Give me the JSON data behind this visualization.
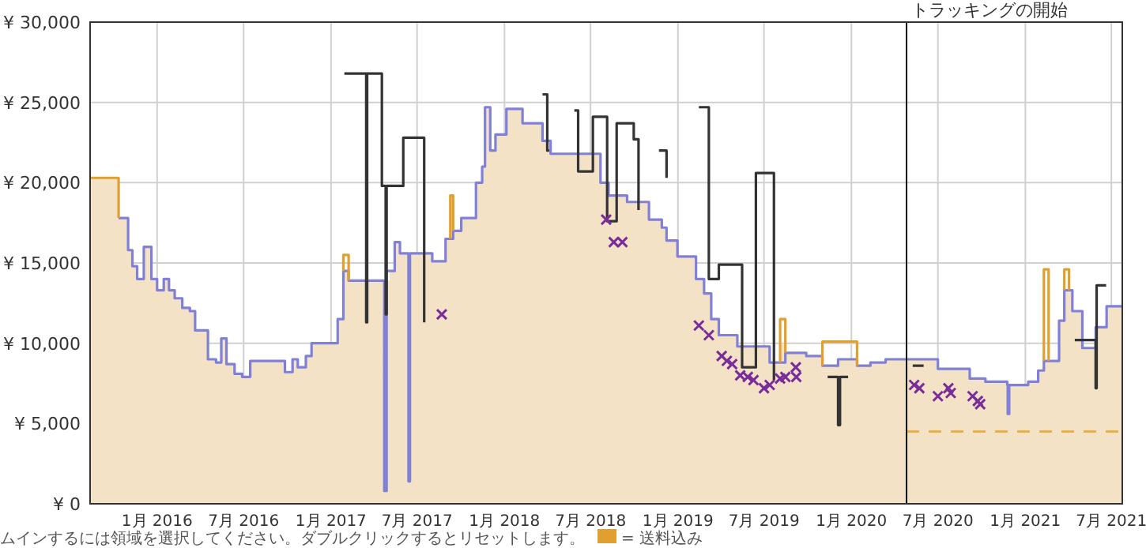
{
  "chart_data": {
    "type": "step",
    "xlim": [
      "2015-08-13",
      "2021-07-24"
    ],
    "ylim": [
      0,
      30000
    ],
    "xticks": [
      {
        "value": "2016-01",
        "label": "1月 2016"
      },
      {
        "value": "2016-07",
        "label": "7月 2016"
      },
      {
        "value": "2017-01",
        "label": "1月 2017"
      },
      {
        "value": "2017-07",
        "label": "7月 2017"
      },
      {
        "value": "2018-01",
        "label": "1月 2018"
      },
      {
        "value": "2018-07",
        "label": "7月 2018"
      },
      {
        "value": "2019-01",
        "label": "1月 2019"
      },
      {
        "value": "2019-07",
        "label": "7月 2019"
      },
      {
        "value": "2020-01",
        "label": "1月 2020"
      },
      {
        "value": "2020-07",
        "label": "7月 2020"
      },
      {
        "value": "2021-01",
        "label": "1月 2021"
      },
      {
        "value": "2021-07",
        "label": "7月 2021"
      }
    ],
    "yticks": [
      {
        "value": 0,
        "label": "¥ 0"
      },
      {
        "value": 5000,
        "label": "¥ 5,000"
      },
      {
        "value": 10000,
        "label": "¥ 10,000"
      },
      {
        "value": 15000,
        "label": "¥ 15,000"
      },
      {
        "value": 20000,
        "label": "¥ 20,000"
      },
      {
        "value": 25000,
        "label": "¥ 25,000"
      },
      {
        "value": 30000,
        "label": "¥ 30,000"
      }
    ],
    "grid": true,
    "legend": "bottom",
    "ref_lines": [
      {
        "axis": "x",
        "value": "2020-04-26",
        "label": "トラッキングの開始",
        "color": "#000000"
      }
    ],
    "annotations": [
      "ムインするには領域を選択してください。ダブルクリックするとリセットします。"
    ],
    "series": [
      {
        "type": "area",
        "color": "#f3e2c6",
        "x": [
          "2015-08-13",
          "2015-10-12",
          "2015-11-01",
          "2015-11-10",
          "2015-11-20",
          "2015-12-04",
          "2015-12-20",
          "2016-01-01",
          "2016-01-15",
          "2016-01-26",
          "2016-02-07",
          "2016-02-23",
          "2016-03-10",
          "2016-03-21",
          "2016-04-17",
          "2016-05-04",
          "2016-05-15",
          "2016-05-26",
          "2016-06-12",
          "2016-06-28",
          "2016-07-15",
          "2016-09-26",
          "2016-10-12",
          "2016-10-23",
          "2016-11-09",
          "2016-11-21",
          "2017-01-15",
          "2017-01-27",
          "2017-02-07",
          "2017-05-04",
          "2017-05-15",
          "2017-05-26",
          "2017-08-02",
          "2017-08-30",
          "2017-09-09",
          "2017-09-15",
          "2017-10-02",
          "2017-11-02",
          "2017-11-15",
          "2017-11-21",
          "2017-12-02",
          "2017-12-13",
          "2018-01-05",
          "2018-02-08",
          "2018-03-22",
          "2018-04-08",
          "2018-07-22",
          "2018-08-08",
          "2018-09-16",
          "2018-11-01",
          "2018-11-28",
          "2018-12-08",
          "2018-12-31",
          "2019-02-08",
          "2019-02-25",
          "2019-03-12",
          "2019-03-28",
          "2019-05-06",
          "2019-07-13",
          "2019-08-04",
          "2019-08-15",
          "2019-09-28",
          "2019-11-01",
          "2019-12-04",
          "2020-01-13",
          "2020-02-10",
          "2020-03-13",
          "2020-07-01",
          "2020-09-06",
          "2020-10-09",
          "2020-11-24",
          "2021-01-07",
          "2021-01-28",
          "2021-02-09",
          "2021-03-13",
          "2021-03-24",
          "2021-04-10",
          "2021-05-01",
          "2021-05-29",
          "2021-06-21",
          "2021-07-24"
        ],
        "values": [
          20300,
          17800,
          15800,
          14800,
          14000,
          16000,
          14000,
          13300,
          14000,
          13300,
          12800,
          12200,
          12000,
          10800,
          9000,
          8800,
          10300,
          8700,
          8100,
          7900,
          8900,
          8200,
          9000,
          8500,
          9200,
          10000,
          11500,
          14500,
          13900,
          14500,
          16300,
          15600,
          15100,
          16500,
          19200,
          17000,
          17800,
          20000,
          21000,
          24700,
          22000,
          23000,
          24600,
          23700,
          22600,
          21800,
          20000,
          19200,
          18800,
          17700,
          17200,
          16400,
          15400,
          14000,
          13100,
          11500,
          10500,
          9800,
          8800,
          10000,
          9400,
          9200,
          8600,
          9000,
          8600,
          8800,
          9000,
          8400,
          7800,
          7600,
          7400,
          7600,
          8300,
          8900,
          11400,
          13300,
          12000,
          9700,
          11000,
          12300,
          12300
        ]
      },
      {
        "color": "#8080d8",
        "x": [
          "2015-10-12",
          "2015-11-01",
          "2015-11-10",
          "2015-11-20",
          "2015-12-04",
          "2015-12-20",
          "2016-01-01",
          "2016-01-15",
          "2016-01-26",
          "2016-02-07",
          "2016-02-23",
          "2016-03-10",
          "2016-03-21",
          "2016-04-17",
          "2016-05-04",
          "2016-05-15",
          "2016-05-26",
          "2016-06-12",
          "2016-06-28",
          "2016-07-15",
          "2016-09-26",
          "2016-10-12",
          "2016-10-23",
          "2016-11-09",
          "2016-11-21",
          "2017-01-15",
          "2017-01-27",
          "2017-02-07",
          "2017-04-23",
          "2017-04-28",
          "2017-05-04",
          "2017-05-15",
          "2017-05-26",
          "2017-06-13",
          "2017-06-16",
          "2017-08-02",
          "2017-08-30",
          "2017-09-15",
          "2017-10-02",
          "2017-11-02",
          "2017-11-15",
          "2017-11-21",
          "2017-12-02",
          "2017-12-13",
          "2018-01-05",
          "2018-02-08",
          "2018-03-22",
          "2018-04-08",
          "2018-07-22",
          "2018-08-08",
          "2018-09-16",
          "2018-11-01",
          "2018-11-28",
          "2018-12-08",
          "2018-12-31",
          "2019-02-08",
          "2019-02-25",
          "2019-03-12",
          "2019-03-28",
          "2019-05-06",
          "2019-07-13",
          "2019-08-15",
          "2019-09-28",
          "2019-11-01",
          "2019-12-04",
          "2020-01-13",
          "2020-02-10",
          "2020-03-13",
          "2020-07-01",
          "2020-09-06",
          "2020-10-09",
          "2020-11-24",
          "2020-11-25",
          "2020-11-28",
          "2021-01-07",
          "2021-01-28",
          "2021-02-09",
          "2021-03-13",
          "2021-03-24",
          "2021-04-10",
          "2021-05-01",
          "2021-05-29",
          "2021-06-21",
          "2021-07-24"
        ],
        "values": [
          17800,
          15800,
          14800,
          14000,
          16000,
          14000,
          13300,
          14000,
          13300,
          12800,
          12200,
          12000,
          10800,
          9000,
          8800,
          10300,
          8700,
          8100,
          7900,
          8900,
          8200,
          9000,
          8500,
          9200,
          10000,
          11500,
          14500,
          13900,
          800,
          14500,
          14500,
          16300,
          15600,
          1400,
          15600,
          15100,
          16500,
          17000,
          17800,
          20000,
          21000,
          24700,
          22000,
          23000,
          24600,
          23700,
          22600,
          21800,
          20000,
          19200,
          18800,
          17700,
          17200,
          16400,
          15400,
          14000,
          13100,
          11500,
          10500,
          9800,
          8800,
          9400,
          9200,
          8600,
          9000,
          8600,
          8800,
          9000,
          8400,
          7800,
          7600,
          7400,
          5600,
          7400,
          7600,
          8300,
          8900,
          11400,
          13300,
          12000,
          9700,
          11000,
          12300,
          12300
        ]
      },
      {
        "name": "= 送料込み",
        "color": "#e0a030",
        "x": [
          "2015-08-13",
          "2015-10-12",
          "2015-10-12"
        ],
        "values": [
          20300,
          20300,
          17800
        ]
      },
      {
        "color": "#e0a030",
        "x": [
          "2017-01-27",
          "2017-01-27",
          "2017-02-07",
          "2017-02-07"
        ],
        "values": [
          14500,
          15500,
          15500,
          13900
        ]
      },
      {
        "color": "#e0a030",
        "x": [
          "2017-09-09",
          "2017-09-09",
          "2017-09-15",
          "2017-09-15"
        ],
        "values": [
          16500,
          19200,
          19200,
          17000
        ]
      },
      {
        "color": "#e0a030",
        "x": [
          "2019-08-04",
          "2019-08-04",
          "2019-08-15",
          "2019-08-15"
        ],
        "values": [
          8800,
          11500,
          11500,
          9400
        ]
      },
      {
        "color": "#e0a030",
        "x": [
          "2019-11-01",
          "2019-11-01",
          "2020-01-13",
          "2020-01-13"
        ],
        "values": [
          8600,
          10100,
          10100,
          8600
        ]
      },
      {
        "color": "#e0a030",
        "x": [
          "2021-02-09",
          "2021-02-09",
          "2021-02-19",
          "2021-02-19"
        ],
        "values": [
          8900,
          14600,
          14600,
          8900
        ]
      },
      {
        "color": "#e0a030",
        "x": [
          "2021-03-24",
          "2021-03-24",
          "2021-04-03",
          "2021-04-03"
        ],
        "values": [
          13300,
          14600,
          14600,
          13300
        ]
      },
      {
        "color": "#333333",
        "x": [
          "2017-01-29",
          "2017-03-16",
          "2017-03-18",
          "2017-04-18",
          "2017-04-26",
          "2017-04-28",
          "2017-06-02",
          "2017-07-16"
        ],
        "values": [
          26800,
          11300,
          26800,
          19800,
          11800,
          19800,
          22800,
          11300
        ]
      },
      {
        "color": "#333333",
        "x": [
          "2018-03-22",
          "2018-04-01",
          "2018-04-05"
        ],
        "values": [
          25500,
          22000,
          22000
        ]
      },
      {
        "color": "#333333",
        "x": [
          "2018-05-28",
          "2018-06-05",
          "2018-07-06",
          "2018-08-05",
          "2018-08-25",
          "2018-09-30",
          "2018-10-10"
        ],
        "values": [
          24500,
          20700,
          24100,
          17600,
          23700,
          22700,
          18300
        ]
      },
      {
        "color": "#333333",
        "x": [
          "2018-11-22",
          "2018-12-08"
        ],
        "values": [
          22000,
          20300
        ]
      },
      {
        "color": "#333333",
        "x": [
          "2019-02-14",
          "2019-03-07",
          "2019-03-28",
          "2019-05-16",
          "2019-06-14",
          "2019-07-22"
        ],
        "values": [
          24700,
          14000,
          14900,
          8500,
          20600,
          7700
        ]
      },
      {
        "color": "#333333",
        "x": [
          "2019-11-12",
          "2019-12-04",
          "2019-12-08",
          "2019-12-25"
        ],
        "values": [
          7900,
          4900,
          7900,
          7900
        ]
      },
      {
        "color": "#333333",
        "x": [
          "2020-05-09",
          "2020-06-01"
        ],
        "values": [
          8600,
          8600
        ]
      },
      {
        "color": "#333333",
        "x": [
          "2021-04-15",
          "2021-05-29",
          "2021-05-31",
          "2021-06-20"
        ],
        "values": [
          10200,
          7200,
          13600,
          13600
        ]
      },
      {
        "type": "line",
        "line_style": "dashed",
        "color": "#e8b04a",
        "x": [
          "2020-04-26",
          "2021-07-24"
        ],
        "values": [
          4500,
          4500
        ]
      },
      {
        "type": "scatter",
        "marker": "cross",
        "color": "#7a2c9a",
        "x": [
          "2017-08-22",
          "2018-08-03",
          "2018-08-19",
          "2018-09-06",
          "2019-02-14",
          "2019-03-07",
          "2019-04-03",
          "2019-04-14",
          "2019-04-25",
          "2019-05-12",
          "2019-05-28",
          "2019-06-09",
          "2019-07-01",
          "2019-07-13",
          "2019-08-04",
          "2019-08-15",
          "2019-09-06",
          "2019-09-07",
          "2020-05-12",
          "2020-05-23",
          "2020-07-01",
          "2020-07-23",
          "2020-07-28",
          "2020-09-12",
          "2020-09-23",
          "2020-09-28"
        ],
        "values": [
          11800,
          17700,
          16300,
          16300,
          11100,
          10500,
          9200,
          8900,
          8700,
          8000,
          7900,
          7700,
          7200,
          7400,
          7800,
          7900,
          8500,
          7900,
          7400,
          7200,
          6700,
          7200,
          6900,
          6700,
          6400,
          6200
        ]
      }
    ]
  }
}
